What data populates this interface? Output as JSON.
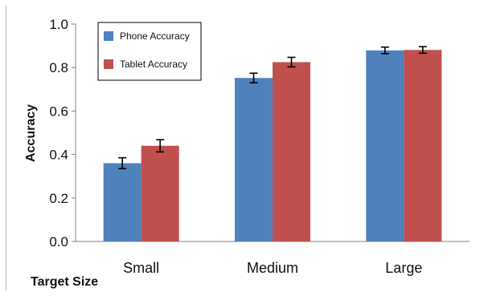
{
  "chart_data": {
    "type": "bar",
    "title": "",
    "xlabel": "Target Size",
    "ylabel": "Accuracy",
    "categories": [
      "Small",
      "Medium",
      "Large"
    ],
    "ylim": [
      0,
      1.0
    ],
    "yticks": [
      "0.0",
      "0.2",
      "0.4",
      "0.6",
      "0.8",
      "1.0"
    ],
    "ytick_values": [
      0,
      0.2,
      0.4,
      0.6,
      0.8,
      1.0
    ],
    "grid": false,
    "legend_position": "top-left",
    "series": [
      {
        "name": "Phone Accuracy",
        "color": "#4f81bd",
        "values": [
          0.36,
          0.752,
          0.879
        ],
        "errors": [
          0.025,
          0.022,
          0.015
        ]
      },
      {
        "name": "Tablet Accuracy",
        "color": "#c0504d",
        "values": [
          0.44,
          0.825,
          0.881
        ],
        "errors": [
          0.028,
          0.022,
          0.015
        ]
      }
    ]
  }
}
